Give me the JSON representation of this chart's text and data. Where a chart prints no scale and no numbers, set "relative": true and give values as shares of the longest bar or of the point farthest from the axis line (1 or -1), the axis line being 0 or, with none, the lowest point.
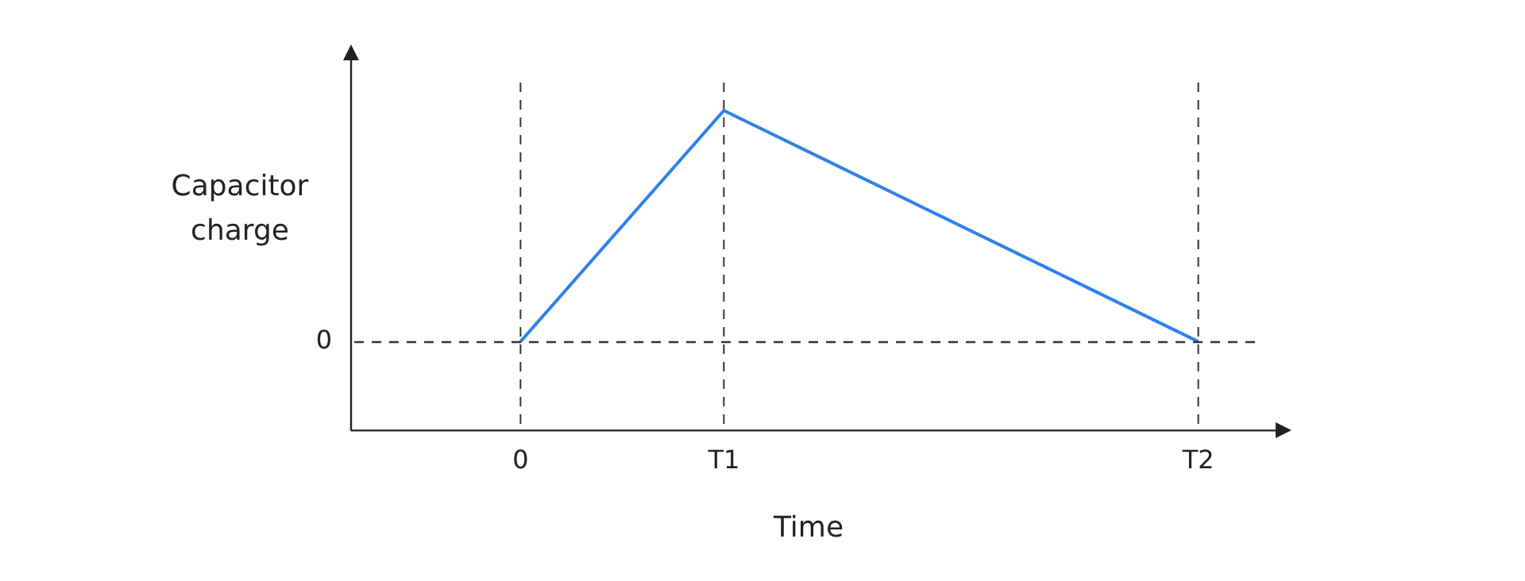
{
  "chart_data": {
    "type": "line",
    "xlabel": "Time",
    "ylabel": "Capacitor charge",
    "relative": true,
    "categories": [
      null,
      null,
      null,
      null,
      null,
      "0",
      null,
      null,
      null,
      null,
      null,
      "T1",
      null,
      null,
      null,
      null,
      null,
      null,
      null,
      null,
      null,
      null,
      null,
      null,
      null,
      "T2",
      null,
      null
    ],
    "values": [
      null,
      null,
      null,
      null,
      null,
      0,
      null,
      null,
      null,
      null,
      null,
      1,
      null,
      null,
      null,
      null,
      null,
      null,
      null,
      null,
      null,
      null,
      null,
      null,
      null,
      0,
      null,
      null
    ],
    "color": "#2f80ed",
    "marker": "none",
    "line_style": "solid",
    "ref_lines": [
      {
        "axis": "y",
        "value": 0,
        "label": "0",
        "color": "#333333",
        "line_style": "dashed"
      },
      {
        "axis": "x",
        "value": "0",
        "color": "#333333",
        "line_style": "dashed"
      },
      {
        "axis": "x",
        "value": "T1",
        "color": "#333333",
        "line_style": "dashed"
      },
      {
        "axis": "x",
        "value": "T2",
        "color": "#333333",
        "line_style": "dashed"
      }
    ]
  }
}
